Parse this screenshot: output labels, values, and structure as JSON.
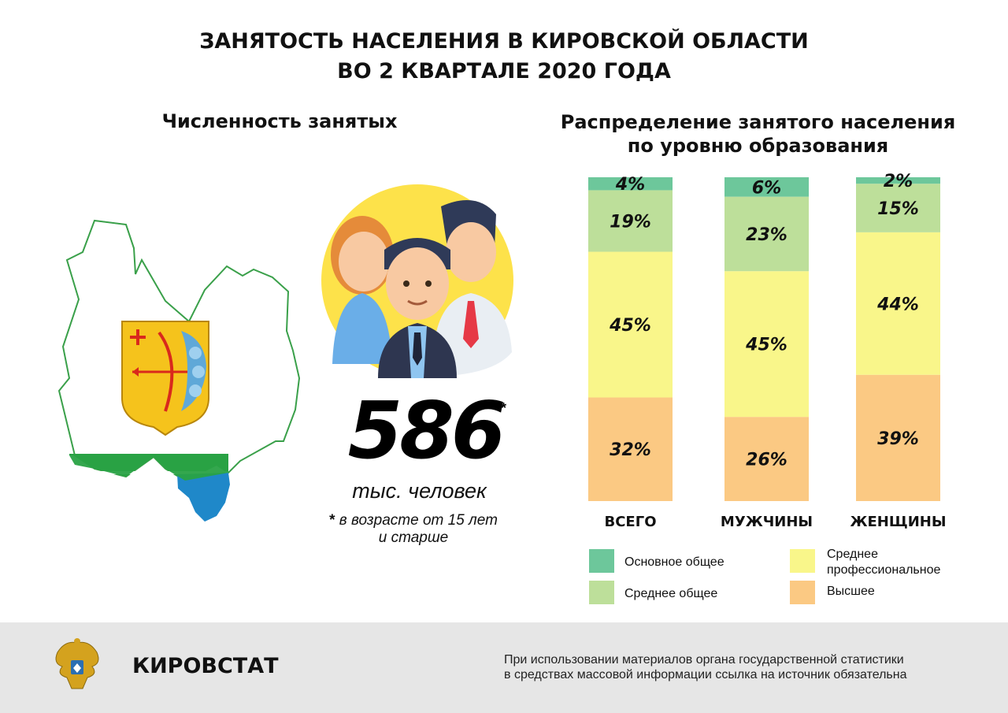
{
  "header": {
    "title_line1": "ЗАНЯТОСТЬ НАСЕЛЕНИЯ В КИРОВСКОЙ ОБЛАСТИ",
    "title_line2": "ВО 2 КВАРТАЛЕ 2020 ГОДА"
  },
  "left_panel": {
    "heading": "Численность занятых",
    "value": "586",
    "value_mark": "*",
    "unit": "тыс. человек",
    "note_mark": "*",
    "note_line1": "в возрасте от 15 лет",
    "note_line2": "и старше"
  },
  "right_panel": {
    "heading_line1": "Распределение занятого населения",
    "heading_line2": "по уровню образования"
  },
  "chart_data": {
    "type": "bar",
    "stacked": true,
    "normalized_percent": true,
    "categories": [
      "ВСЕГО",
      "МУЖЧИНЫ",
      "ЖЕНЩИНЫ"
    ],
    "series": [
      {
        "name": "Высшее",
        "color": "#fbc983",
        "values": [
          32,
          26,
          39
        ]
      },
      {
        "name": "Среднее профессиональное",
        "color": "#f9f68a",
        "values": [
          45,
          45,
          44
        ]
      },
      {
        "name": "Среднее общее",
        "color": "#bddf9a",
        "values": [
          19,
          23,
          15
        ]
      },
      {
        "name": "Основное общее",
        "color": "#6dc79b",
        "values": [
          4,
          6,
          2
        ]
      }
    ],
    "value_suffix": "%",
    "legend": [
      {
        "label_line1": "Основное общее",
        "label_line2": "",
        "color": "#6dc79b"
      },
      {
        "label_line1": "Среднее общее",
        "label_line2": "",
        "color": "#bddf9a"
      },
      {
        "label_line1": "Среднее",
        "label_line2": "профессиональное",
        "color": "#f9f68a"
      },
      {
        "label_line1": "Высшее",
        "label_line2": "",
        "color": "#fbc983"
      }
    ],
    "legend_position": "bottom"
  },
  "footer": {
    "organization": "КИРОВСТАТ",
    "disclaimer_line1": "При использовании материалов органа государственной статистики",
    "disclaimer_line2": "в средствах массовой информации ссылка на источник обязательна"
  },
  "colors": {
    "region_outline": "#3aa04a",
    "flag_green": "#29a244",
    "flag_blue": "#1f88c9",
    "coat_yellow": "#f5c31c",
    "coat_red": "#d9291c",
    "people_circle": "#fde24a",
    "footer_bg": "#e6e6e6"
  },
  "icons": [
    "kirov-region-map-icon",
    "kirov-coat-of-arms-icon",
    "people-group-icon",
    "rosstat-emblem-icon"
  ]
}
